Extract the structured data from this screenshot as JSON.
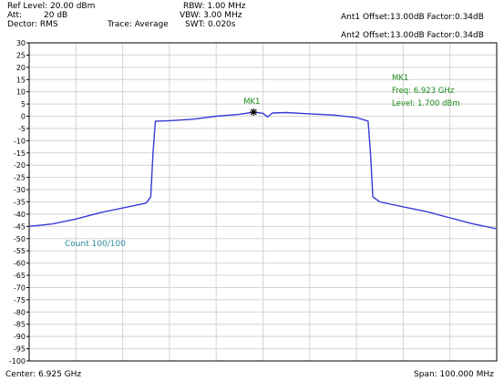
{
  "header": {
    "ref_level": "Ref Level: 20.00 dBm",
    "att_label": "Att:",
    "att_value": "20 dB",
    "detector": "Dector: RMS",
    "trace": "Trace: Average",
    "rbw": "RBW: 1.00 MHz",
    "vbw": "VBW: 3.00 MHz",
    "swt": "SWT: 0.020s",
    "ant1": "Ant1 Offset:13.00dB   Factor:0.34dB",
    "ant2": "Ant2 Offset:13.00dB   Factor:0.34dB"
  },
  "footer": {
    "center": "Center: 6.925 GHz",
    "span": "Span: 100.000 MHz"
  },
  "marker": {
    "label": "MK1",
    "info_title": "MK1",
    "info_freq": "Freq: 6.923 GHz",
    "info_level": "Level: 1.700 dBm",
    "freq_ghz": 6.923,
    "level_dbm": 1.7
  },
  "count": "Count 100/100",
  "colors": {
    "trace": "#3a3ad8",
    "marker_text": "#1a8a1a",
    "count_text": "#2a8a9a",
    "grid": "#d4d4d4"
  },
  "chart_data": {
    "type": "line",
    "x_unit": "GHz",
    "y_unit": "dBm",
    "xlim": [
      6.875,
      6.975
    ],
    "ylim": [
      -100,
      30
    ],
    "y_ticks": [
      30,
      25,
      20,
      15,
      10,
      5,
      0,
      -5,
      -10,
      -15,
      -20,
      -25,
      -30,
      -35,
      -40,
      -45,
      -50,
      -55,
      -60,
      -65,
      -70,
      -75,
      -80,
      -85,
      -90,
      -95,
      -100
    ],
    "grid": true,
    "series": [
      {
        "x": [
          6.875,
          6.88,
          6.885,
          6.89,
          6.895,
          6.9,
          6.901,
          6.9015,
          6.902,
          6.905,
          6.91,
          6.915,
          6.92,
          6.923,
          6.925,
          6.926,
          6.927,
          6.93,
          6.935,
          6.94,
          6.945,
          6.9475,
          6.948,
          6.9485,
          6.95,
          6.955,
          6.96,
          6.965,
          6.97,
          6.975
        ],
        "y": [
          -45,
          -44,
          -42,
          -39.5,
          -37.5,
          -35.5,
          -33,
          -15,
          -2,
          -1.8,
          -1.2,
          0,
          0.8,
          1.7,
          1.2,
          -0.3,
          1.3,
          1.5,
          1.0,
          0.5,
          -0.5,
          -2,
          -15,
          -33,
          -35,
          -37,
          -39,
          -41.5,
          -44,
          -46
        ]
      }
    ]
  }
}
